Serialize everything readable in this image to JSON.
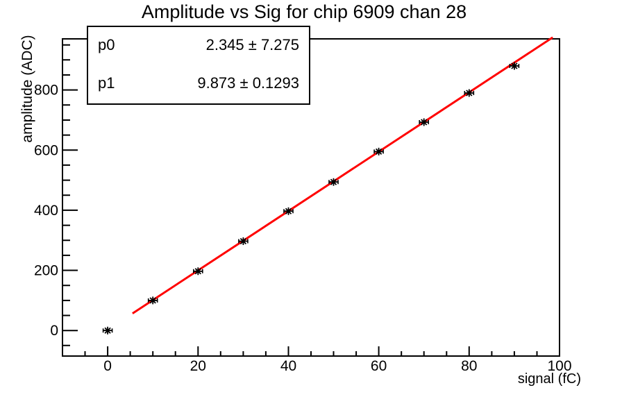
{
  "window": {
    "background": "#ffffff"
  },
  "chart_data": {
    "type": "scatter",
    "title": "Amplitude vs Sig for chip 6909 chan 28",
    "xlabel": "signal (fC)",
    "ylabel": "amplitude (ADC)",
    "xlim": [
      -10,
      100
    ],
    "ylim": [
      -85,
      970
    ],
    "x_ticks": [
      0,
      20,
      40,
      60,
      80,
      100
    ],
    "y_ticks": [
      0,
      200,
      400,
      600,
      800
    ],
    "x_minor_step": 5,
    "y_minor_step": 50,
    "grid": false,
    "legend": "none",
    "marker_style": "asterisk",
    "marker_color": "#000000",
    "x": [
      0,
      10,
      20,
      30,
      40,
      50,
      60,
      70,
      80,
      90
    ],
    "y": [
      0,
      100,
      197,
      297,
      397,
      494,
      595,
      693,
      790,
      880
    ],
    "xerr": 1,
    "fit": {
      "type": "linear",
      "p0": 2.345,
      "p0_err": 7.275,
      "p1": 9.873,
      "p1_err": 0.1293,
      "color": "#ff0000",
      "draw_range": [
        5.5,
        98.5
      ]
    },
    "fit_box": {
      "rows": [
        {
          "name": "p0",
          "value": "2.345 ± 7.275"
        },
        {
          "name": "p1",
          "value": "9.873 ± 0.1293"
        }
      ]
    }
  }
}
